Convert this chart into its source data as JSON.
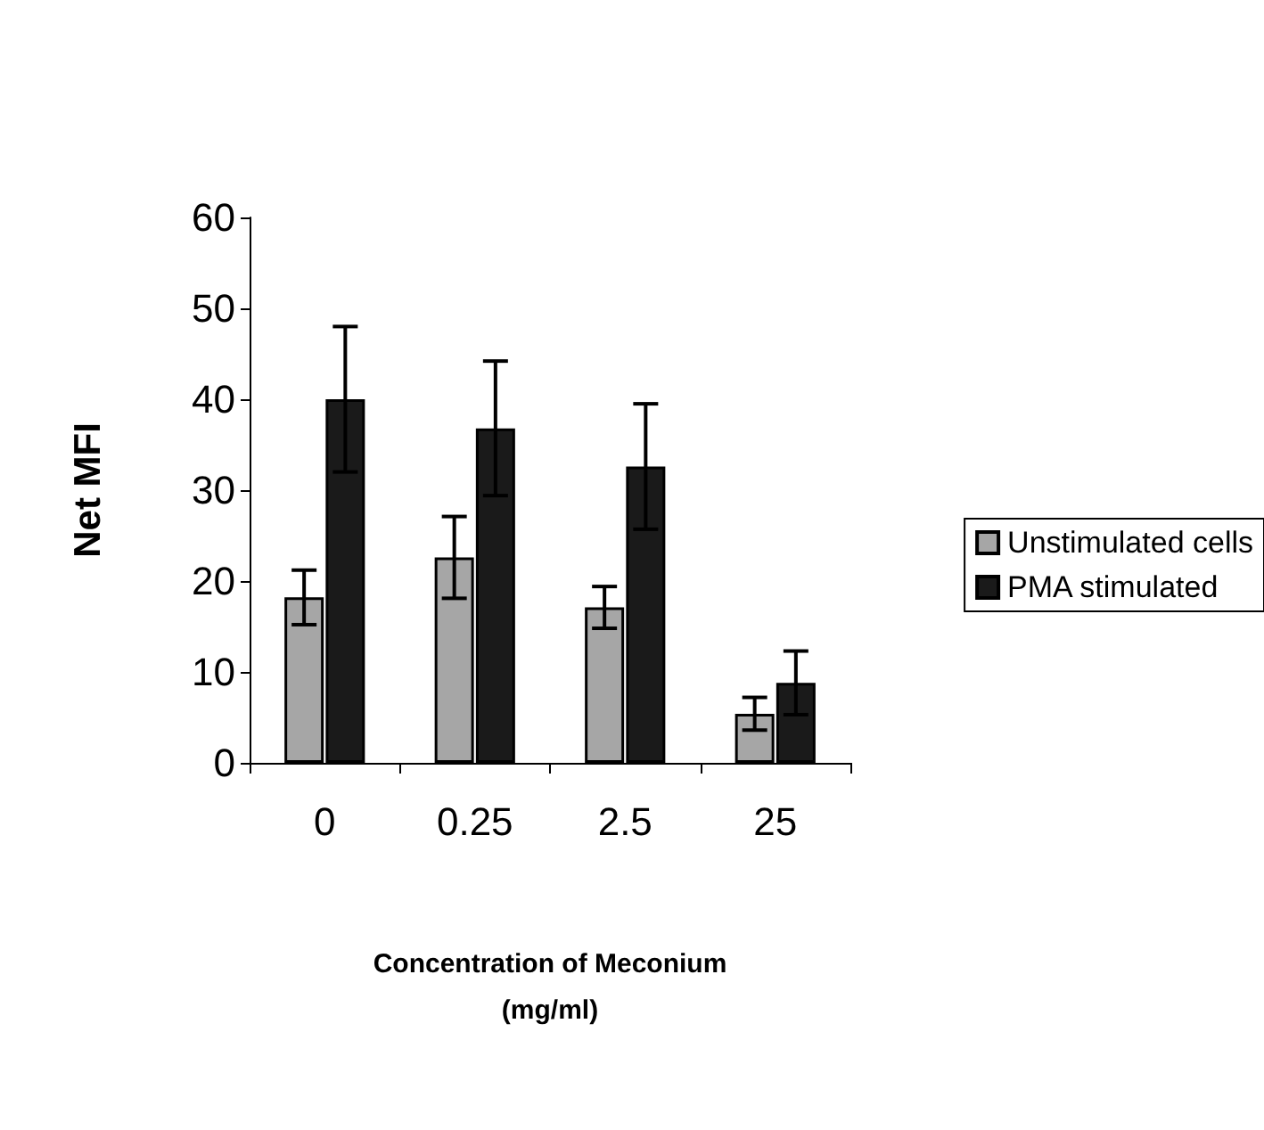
{
  "chart_data": {
    "type": "bar",
    "xlabel": "Concentration of Meconium\n(mg/ml)",
    "ylabel": "Net MFI",
    "categories": [
      "0",
      "0.25",
      "2.5",
      "25"
    ],
    "series": [
      {
        "name": "Unstimulated cells",
        "color": "#a6a6a6",
        "values": [
          18.2,
          22.6,
          17.1,
          5.4
        ],
        "errors": [
          3,
          4.5,
          2.3,
          1.8
        ]
      },
      {
        "name": "PMA stimulated",
        "color": "#1a1a1a",
        "values": [
          40,
          36.8,
          32.6,
          8.8
        ],
        "errors": [
          8,
          7.4,
          6.9,
          3.5
        ]
      }
    ],
    "ylim": [
      0,
      60
    ],
    "yticks": [
      0,
      10,
      20,
      30,
      40,
      50,
      60
    ],
    "grid": false,
    "legend": "right"
  }
}
